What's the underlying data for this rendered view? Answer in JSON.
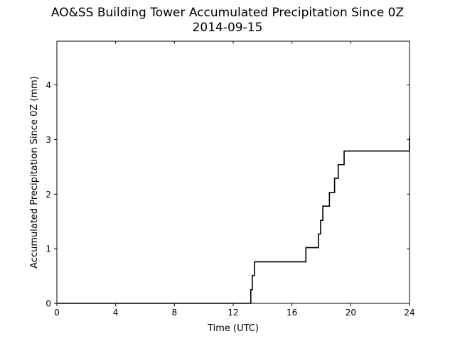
{
  "chart_data": {
    "type": "line",
    "title": "AO&SS Building Tower Accumulated Precipitation Since 0Z",
    "subtitle": "2014-09-15",
    "xlabel": "Time (UTC)",
    "ylabel": "Accumulated Precipitation Since 0Z (mm)",
    "xlim": [
      0,
      24
    ],
    "ylim": [
      0,
      4.8
    ],
    "xticks": [
      0,
      4,
      8,
      12,
      16,
      20,
      24
    ],
    "xtick_labels": [
      "0",
      "4",
      "8",
      "12",
      "16",
      "20",
      "24"
    ],
    "yticks": [
      0,
      1,
      2,
      3,
      4
    ],
    "ytick_labels": [
      "0",
      "1",
      "2",
      "3",
      "4"
    ],
    "grid": false,
    "line_color": "#000000",
    "step": "post",
    "series": [
      {
        "x": [
          0,
          13.2,
          13.3,
          13.45,
          16.95,
          17.8,
          17.95,
          18.1,
          18.55,
          18.9,
          19.15,
          19.55,
          24
        ],
        "y": [
          0,
          0.25,
          0.51,
          0.76,
          1.02,
          1.27,
          1.52,
          1.78,
          2.03,
          2.29,
          2.54,
          2.79,
          3.05
        ]
      }
    ]
  }
}
